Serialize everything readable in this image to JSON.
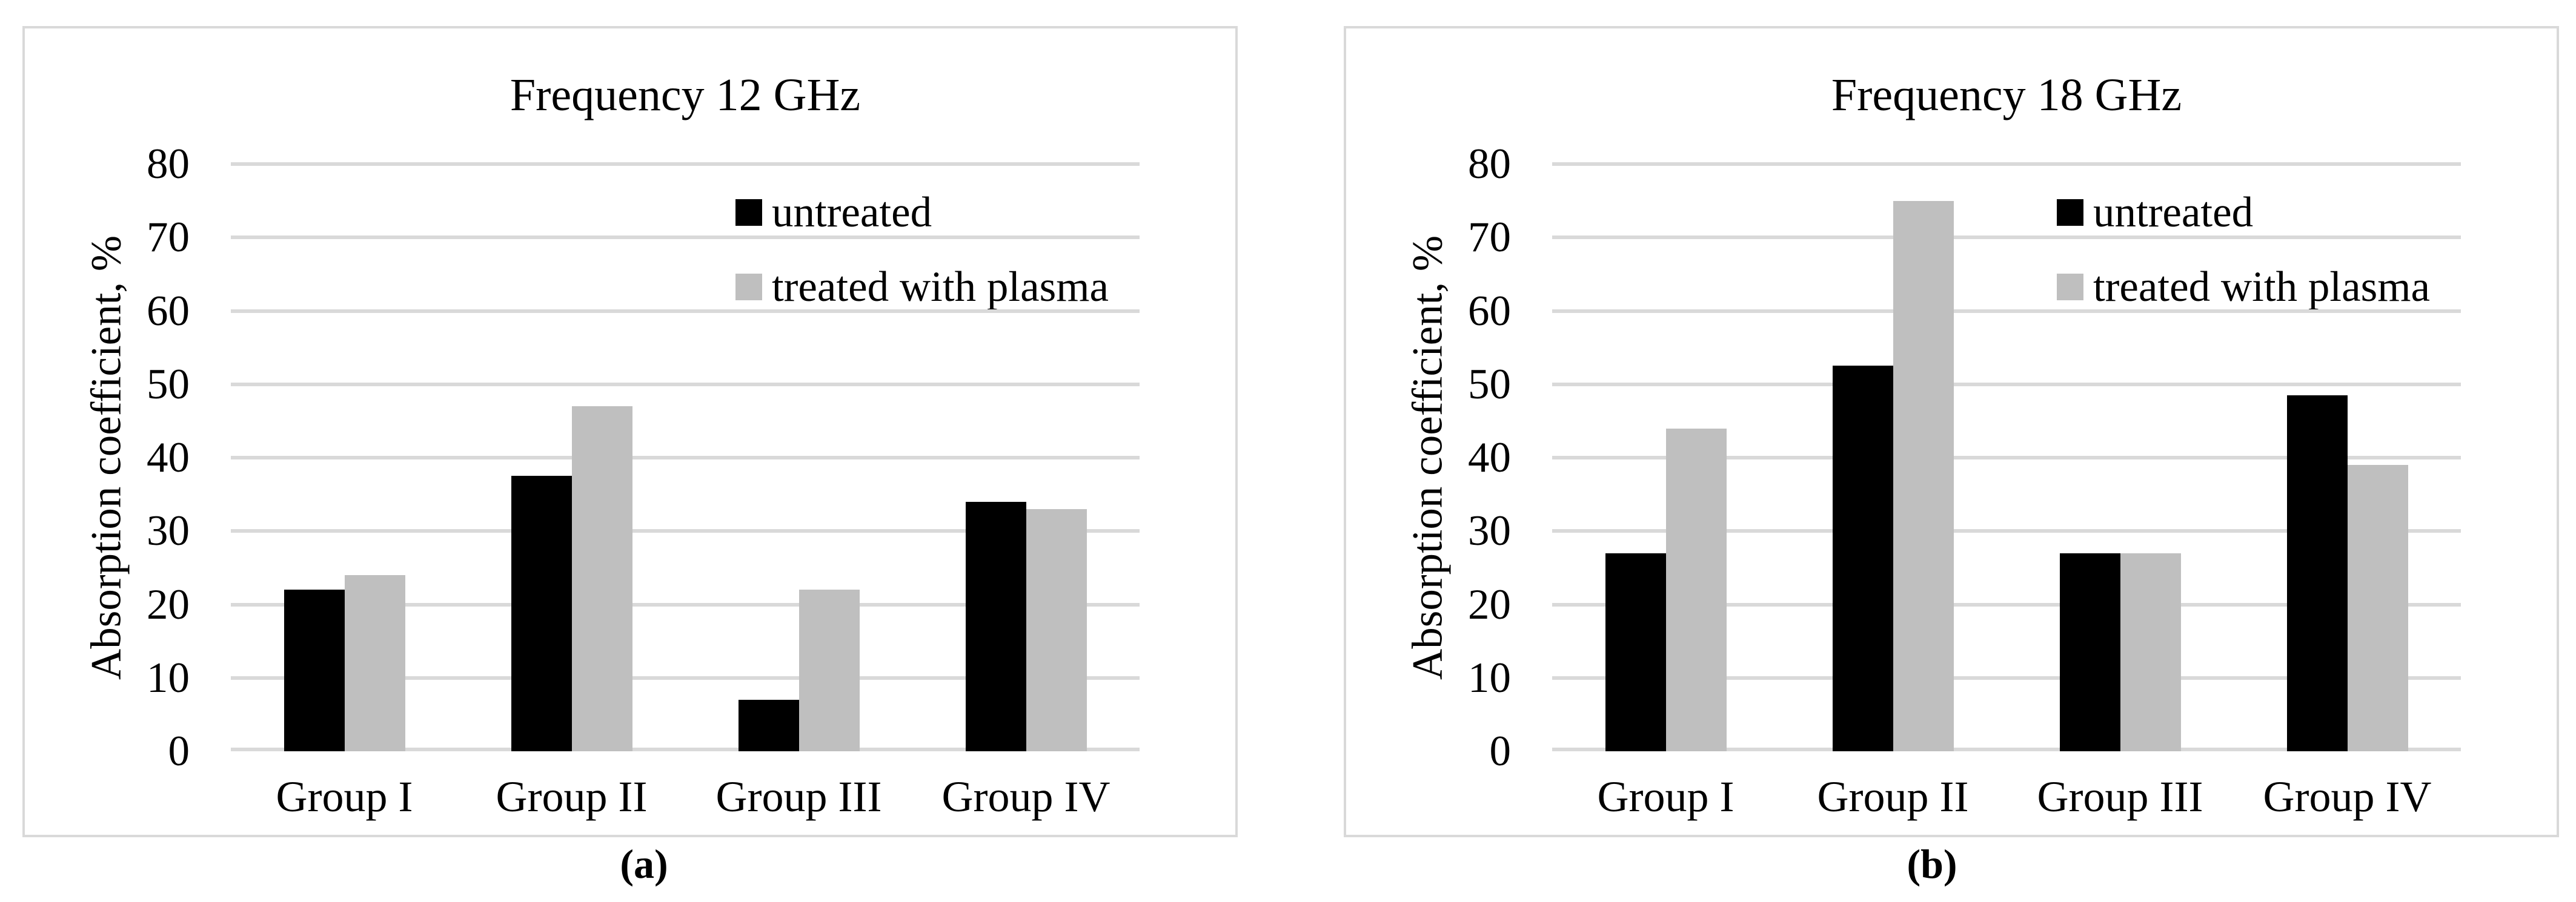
{
  "style": {
    "background": "#ffffff",
    "text_color": "#000000",
    "gridline_color": "#d9d9d9",
    "panel_border_color": "#d9d9d9",
    "bar_black": "#000000",
    "bar_gray": "#bfbfbf"
  },
  "chart_data": [
    {
      "type": "bar",
      "title": "Frequency 12 GHz",
      "caption": "(a)",
      "xlabel": "",
      "ylabel": "Absorption coefficient, %",
      "ylim": [
        0,
        80
      ],
      "ytick_step": 10,
      "yticks": [
        80,
        70,
        60,
        50,
        40,
        30,
        20,
        10,
        0
      ],
      "grid": true,
      "legend_position": "inside-top-right",
      "categories": [
        "Group I",
        "Group II",
        "Group III",
        "Group IV"
      ],
      "series": [
        {
          "name": "untreated",
          "color": "#000000",
          "values": [
            22,
            37.5,
            7,
            34
          ]
        },
        {
          "name": "treated with plasma",
          "color": "#bfbfbf",
          "values": [
            24,
            47,
            22,
            33
          ]
        }
      ]
    },
    {
      "type": "bar",
      "title": "Frequency 18 GHz",
      "caption": "(b)",
      "xlabel": "",
      "ylabel": "Absorption coefficient, %",
      "ylim": [
        0,
        80
      ],
      "ytick_step": 10,
      "yticks": [
        80,
        70,
        60,
        50,
        40,
        30,
        20,
        10,
        0
      ],
      "grid": true,
      "legend_position": "inside-top-right",
      "categories": [
        "Group I",
        "Group II",
        "Group III",
        "Group IV"
      ],
      "series": [
        {
          "name": "untreated",
          "color": "#000000",
          "values": [
            27,
            52.5,
            27,
            48.5
          ]
        },
        {
          "name": "treated with plasma",
          "color": "#bfbfbf",
          "values": [
            44,
            75,
            27,
            39
          ]
        }
      ]
    }
  ]
}
